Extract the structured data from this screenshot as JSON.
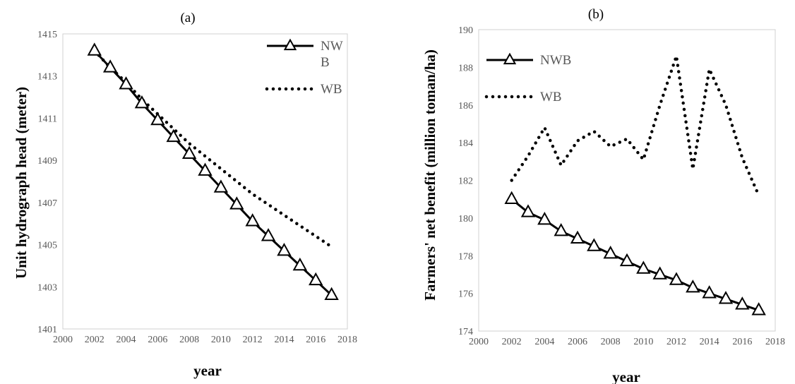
{
  "chart_data": [
    {
      "type": "line",
      "panel_label": "(a)",
      "xlabel": "year",
      "ylabel": "Unit hydrograph head (meter)",
      "xlim": [
        2000,
        2018
      ],
      "ylim": [
        1401,
        1415
      ],
      "xticks": [
        "2000",
        "2002",
        "2004",
        "2006",
        "2008",
        "2010",
        "2012",
        "2014",
        "2016",
        "2018"
      ],
      "yticks": [
        "1401",
        "1403",
        "1405",
        "1407",
        "1409",
        "1411",
        "1413",
        "1415"
      ],
      "legend_position": "top-right",
      "grid": false,
      "x": [
        2002,
        2003,
        2004,
        2005,
        2006,
        2007,
        2008,
        2009,
        2010,
        2011,
        2012,
        2013,
        2014,
        2015,
        2016,
        2017
      ],
      "series": [
        {
          "name": "NWB",
          "legend_lines": [
            "NW",
            "B"
          ],
          "style": "solid-triangle",
          "color": "#000000",
          "values": [
            1414.2,
            1413.4,
            1412.6,
            1411.7,
            1410.9,
            1410.1,
            1409.3,
            1408.5,
            1407.7,
            1406.9,
            1406.1,
            1405.4,
            1404.7,
            1404.0,
            1403.3,
            1402.6
          ]
        },
        {
          "name": "WB",
          "legend_lines": [
            "WB"
          ],
          "style": "dotted",
          "color": "#000000",
          "values": [
            1414.2,
            1413.4,
            1412.7,
            1411.9,
            1411.2,
            1410.5,
            1409.8,
            1409.2,
            1408.6,
            1408.0,
            1407.4,
            1406.9,
            1406.4,
            1405.9,
            1405.4,
            1404.9
          ]
        }
      ]
    },
    {
      "type": "line",
      "panel_label": "(b)",
      "xlabel": "year",
      "ylabel": "Farmers' net benefit (million toman/ha)",
      "xlim": [
        2000,
        2018
      ],
      "ylim": [
        174,
        190
      ],
      "xticks": [
        "2000",
        "2002",
        "2004",
        "2006",
        "2008",
        "2010",
        "2012",
        "2014",
        "2016",
        "2018"
      ],
      "yticks": [
        "174",
        "176",
        "178",
        "180",
        "182",
        "184",
        "186",
        "188",
        "190"
      ],
      "legend_position": "top-left",
      "grid": false,
      "x": [
        2002,
        2003,
        2004,
        2005,
        2006,
        2007,
        2008,
        2009,
        2010,
        2011,
        2012,
        2013,
        2014,
        2015,
        2016,
        2017
      ],
      "series": [
        {
          "name": "NWB",
          "legend_lines": [
            "NWB"
          ],
          "style": "solid-triangle",
          "color": "#000000",
          "values": [
            181.0,
            180.3,
            179.9,
            179.3,
            178.9,
            178.5,
            178.1,
            177.7,
            177.3,
            177.0,
            176.7,
            176.3,
            176.0,
            175.7,
            175.4,
            175.1
          ]
        },
        {
          "name": "WB",
          "legend_lines": [
            "WB"
          ],
          "style": "dotted",
          "color": "#000000",
          "values": [
            182.0,
            183.3,
            184.8,
            182.8,
            184.1,
            184.6,
            183.8,
            184.2,
            183.1,
            186.0,
            188.6,
            182.6,
            187.9,
            186.0,
            183.2,
            181.2
          ]
        }
      ]
    }
  ]
}
